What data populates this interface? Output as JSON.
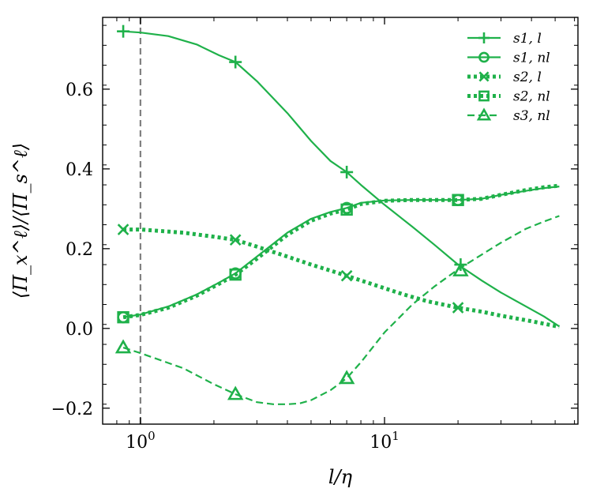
{
  "chart_data": {
    "type": "line",
    "xscale": "log",
    "xlabel": "l/η",
    "ylabel": "⟨Π_x^ℓ⟩/⟨Π_s^ℓ⟩",
    "xlim": [
      0.7,
      62
    ],
    "ylim": [
      -0.24,
      0.78
    ],
    "xticks": [
      {
        "value": 1,
        "base": "10",
        "exp": "0"
      },
      {
        "value": 10,
        "base": "10",
        "exp": "1"
      }
    ],
    "yticks": [
      {
        "value": -0.2,
        "label": "−0.2"
      },
      {
        "value": 0.0,
        "label": "0.0"
      },
      {
        "value": 0.2,
        "label": "0.2"
      },
      {
        "value": 0.4,
        "label": "0.4"
      },
      {
        "value": 0.6,
        "label": "0.6"
      }
    ],
    "vline": {
      "x": 1.0,
      "color": "#808080",
      "style": "dashed"
    },
    "legend_position": "top-right",
    "color": "#1fb14a",
    "series": [
      {
        "name": "s1, l",
        "marker": "plus",
        "dash": "solid",
        "curve": [
          [
            0.85,
            0.745
          ],
          [
            1.0,
            0.742
          ],
          [
            1.3,
            0.733
          ],
          [
            1.7,
            0.712
          ],
          [
            2.1,
            0.685
          ],
          [
            2.45,
            0.668
          ],
          [
            3.0,
            0.62
          ],
          [
            4.0,
            0.54
          ],
          [
            5.0,
            0.47
          ],
          [
            6.0,
            0.42
          ],
          [
            7.0,
            0.392
          ],
          [
            8.0,
            0.36
          ],
          [
            10.0,
            0.31
          ],
          [
            13.0,
            0.255
          ],
          [
            16.0,
            0.21
          ],
          [
            20.0,
            0.16
          ],
          [
            25.0,
            0.12
          ],
          [
            30.0,
            0.09
          ],
          [
            38.0,
            0.055
          ],
          [
            45.0,
            0.03
          ],
          [
            52.0,
            0.005
          ]
        ],
        "markers": [
          [
            0.85,
            0.745
          ],
          [
            2.45,
            0.668
          ],
          [
            7.0,
            0.392
          ],
          [
            20.5,
            0.16
          ]
        ]
      },
      {
        "name": "s1, nl",
        "marker": "circle",
        "dash": "solid",
        "curve": [
          [
            0.85,
            0.028
          ],
          [
            1.0,
            0.035
          ],
          [
            1.3,
            0.055
          ],
          [
            1.7,
            0.085
          ],
          [
            2.1,
            0.115
          ],
          [
            2.45,
            0.138
          ],
          [
            3.0,
            0.18
          ],
          [
            4.0,
            0.24
          ],
          [
            5.0,
            0.275
          ],
          [
            6.0,
            0.292
          ],
          [
            7.0,
            0.302
          ],
          [
            8.0,
            0.315
          ],
          [
            10.0,
            0.321
          ],
          [
            13.0,
            0.322
          ],
          [
            16.0,
            0.322
          ],
          [
            20.0,
            0.322
          ],
          [
            25.0,
            0.325
          ],
          [
            30.0,
            0.335
          ],
          [
            38.0,
            0.345
          ],
          [
            45.0,
            0.352
          ],
          [
            52.0,
            0.356
          ]
        ],
        "markers": [
          [
            0.85,
            0.028
          ],
          [
            2.45,
            0.138
          ],
          [
            7.0,
            0.302
          ],
          [
            20.0,
            0.322
          ]
        ]
      },
      {
        "name": "s2, l",
        "marker": "x",
        "dash": "dotted",
        "curve": [
          [
            0.85,
            0.248
          ],
          [
            1.0,
            0.248
          ],
          [
            1.5,
            0.24
          ],
          [
            2.0,
            0.23
          ],
          [
            2.45,
            0.222
          ],
          [
            3.0,
            0.205
          ],
          [
            4.0,
            0.18
          ],
          [
            5.0,
            0.16
          ],
          [
            6.0,
            0.145
          ],
          [
            7.0,
            0.132
          ],
          [
            9.0,
            0.11
          ],
          [
            12.0,
            0.085
          ],
          [
            15.0,
            0.068
          ],
          [
            20.0,
            0.052
          ],
          [
            25.0,
            0.042
          ],
          [
            30.0,
            0.032
          ],
          [
            40.0,
            0.018
          ],
          [
            52.0,
            0.004
          ]
        ],
        "markers": [
          [
            0.85,
            0.248
          ],
          [
            2.45,
            0.222
          ],
          [
            7.0,
            0.132
          ],
          [
            20.0,
            0.052
          ]
        ]
      },
      {
        "name": "s2, nl",
        "marker": "square",
        "dash": "dotted",
        "curve": [
          [
            0.85,
            0.028
          ],
          [
            1.0,
            0.034
          ],
          [
            1.3,
            0.052
          ],
          [
            1.7,
            0.082
          ],
          [
            2.1,
            0.112
          ],
          [
            2.45,
            0.135
          ],
          [
            3.0,
            0.175
          ],
          [
            4.0,
            0.235
          ],
          [
            5.0,
            0.27
          ],
          [
            6.0,
            0.288
          ],
          [
            7.0,
            0.298
          ],
          [
            8.0,
            0.312
          ],
          [
            10.0,
            0.32
          ],
          [
            13.0,
            0.322
          ],
          [
            16.0,
            0.322
          ],
          [
            20.0,
            0.322
          ],
          [
            25.0,
            0.325
          ],
          [
            30.0,
            0.335
          ],
          [
            38.0,
            0.347
          ],
          [
            45.0,
            0.354
          ],
          [
            52.0,
            0.358
          ]
        ],
        "markers": [
          [
            0.85,
            0.028
          ],
          [
            2.45,
            0.135
          ],
          [
            7.0,
            0.298
          ],
          [
            20.0,
            0.322
          ]
        ]
      },
      {
        "name": "s3, nl",
        "marker": "triangle",
        "dash": "dashed",
        "curve": [
          [
            0.85,
            -0.048
          ],
          [
            1.0,
            -0.062
          ],
          [
            1.5,
            -0.1
          ],
          [
            2.0,
            -0.14
          ],
          [
            2.45,
            -0.165
          ],
          [
            3.0,
            -0.185
          ],
          [
            3.5,
            -0.19
          ],
          [
            4.0,
            -0.19
          ],
          [
            4.5,
            -0.188
          ],
          [
            5.0,
            -0.18
          ],
          [
            6.0,
            -0.155
          ],
          [
            7.0,
            -0.125
          ],
          [
            8.0,
            -0.085
          ],
          [
            10.0,
            -0.01
          ],
          [
            13.0,
            0.06
          ],
          [
            16.0,
            0.105
          ],
          [
            20.0,
            0.148
          ],
          [
            25.0,
            0.185
          ],
          [
            30.0,
            0.215
          ],
          [
            38.0,
            0.25
          ],
          [
            45.0,
            0.268
          ],
          [
            52.0,
            0.282
          ]
        ],
        "markers": [
          [
            0.85,
            -0.048
          ],
          [
            2.45,
            -0.165
          ],
          [
            7.0,
            -0.125
          ],
          [
            20.5,
            0.145
          ]
        ]
      }
    ]
  }
}
